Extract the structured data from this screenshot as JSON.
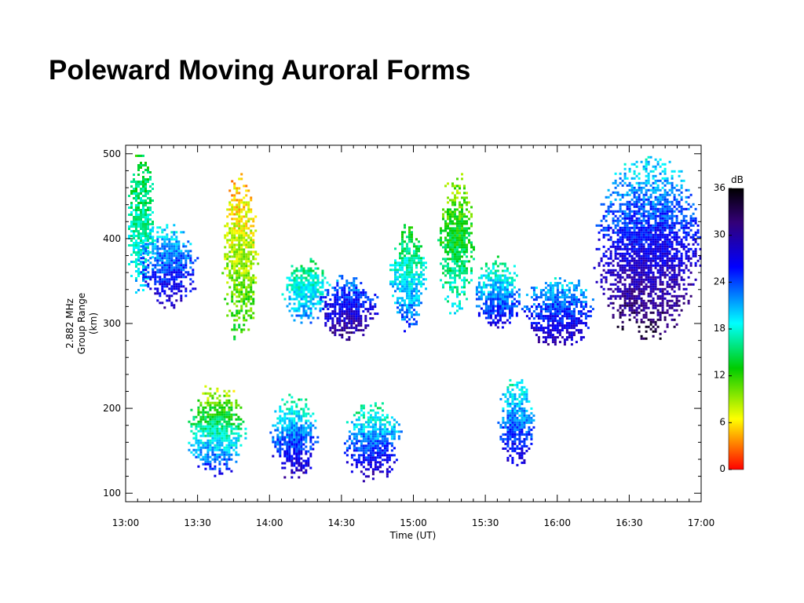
{
  "slide": {
    "title": "Poleward Moving Auroral Forms"
  },
  "chart_data": {
    "type": "heatmap",
    "xlabel": "Time (UT)",
    "ylabel_lines": [
      "2.882 MHz",
      "Group Range",
      "(km)"
    ],
    "x_ticks": [
      "13:00",
      "13:30",
      "14:00",
      "14:30",
      "15:00",
      "15:30",
      "16:00",
      "16:30",
      "17:00"
    ],
    "xlim": [
      "13:00",
      "17:00"
    ],
    "y_ticks": [
      100,
      200,
      300,
      400,
      500
    ],
    "ylim": [
      90,
      510
    ],
    "colorbar": {
      "label": "dB",
      "ticks": [
        0,
        6,
        12,
        18,
        24,
        30,
        36
      ],
      "range": [
        0,
        36
      ],
      "colors": [
        "#ff0000",
        "#ffff00",
        "#00cc00",
        "#00ffff",
        "#0000ff",
        "#000000"
      ]
    },
    "grid": false,
    "features": [
      {
        "t_start": "13:00",
        "t_end": "13:12",
        "range_km": [
          330,
          510
        ],
        "power_db": [
          12,
          20
        ]
      },
      {
        "t_start": "13:05",
        "t_end": "13:30",
        "range_km": [
          320,
          420
        ],
        "power_db": [
          18,
          28
        ]
      },
      {
        "t_start": "13:40",
        "t_end": "13:55",
        "range_km": [
          280,
          480
        ],
        "power_db": [
          4,
          12
        ]
      },
      {
        "t_start": "14:05",
        "t_end": "14:25",
        "range_km": [
          300,
          380
        ],
        "power_db": [
          14,
          22
        ]
      },
      {
        "t_start": "14:20",
        "t_end": "14:45",
        "range_km": [
          280,
          360
        ],
        "power_db": [
          20,
          32
        ]
      },
      {
        "t_start": "14:50",
        "t_end": "15:05",
        "range_km": [
          290,
          420
        ],
        "power_db": [
          12,
          24
        ]
      },
      {
        "t_start": "15:10",
        "t_end": "15:25",
        "range_km": [
          310,
          480
        ],
        "power_db": [
          8,
          18
        ]
      },
      {
        "t_start": "15:25",
        "t_end": "15:45",
        "range_km": [
          290,
          380
        ],
        "power_db": [
          14,
          28
        ]
      },
      {
        "t_start": "15:45",
        "t_end": "16:15",
        "range_km": [
          270,
          360
        ],
        "power_db": [
          18,
          30
        ]
      },
      {
        "t_start": "16:15",
        "t_end": "17:00",
        "range_km": [
          280,
          500
        ],
        "power_db": [
          18,
          34
        ]
      },
      {
        "t_start": "13:25",
        "t_end": "13:50",
        "range_km": [
          120,
          230
        ],
        "power_db": [
          6,
          26
        ]
      },
      {
        "t_start": "14:00",
        "t_end": "14:20",
        "range_km": [
          115,
          220
        ],
        "power_db": [
          14,
          30
        ]
      },
      {
        "t_start": "14:30",
        "t_end": "14:55",
        "range_km": [
          115,
          210
        ],
        "power_db": [
          14,
          30
        ]
      },
      {
        "t_start": "15:35",
        "t_end": "15:50",
        "range_km": [
          130,
          240
        ],
        "power_db": [
          16,
          28
        ]
      }
    ]
  }
}
